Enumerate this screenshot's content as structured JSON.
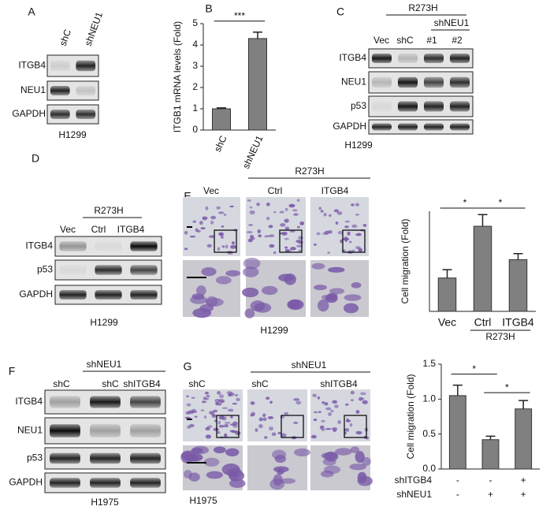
{
  "panels": {
    "A": {
      "label": "A",
      "columns": [
        "shC",
        "shNEU1"
      ],
      "rows": [
        "ITGB4",
        "NEU1",
        "GAPDH"
      ],
      "cell_line": "H1299"
    },
    "C": {
      "label": "C",
      "group": "R273H",
      "subgroup": "shNEU1",
      "columns": [
        "Vec",
        "shC",
        "#1",
        "#2"
      ],
      "rows": [
        "ITGB4",
        "NEU1",
        "p53",
        "GAPDH"
      ],
      "cell_line": "H1299"
    },
    "D": {
      "label": "D",
      "group": "R273H",
      "columns": [
        "Vec",
        "Ctrl",
        "ITGB4"
      ],
      "rows": [
        "ITGB4",
        "p53",
        "GAPDH"
      ],
      "cell_line": "H1299"
    },
    "E": {
      "label": "E",
      "group": "R273H",
      "columns": [
        "Vec",
        "Ctrl",
        "ITGB4"
      ],
      "cell_line": "H1299"
    },
    "F": {
      "label": "F",
      "group": "shNEU1",
      "columns": [
        "shC",
        "shC",
        "shITGB4"
      ],
      "rows": [
        "ITGB4",
        "NEU1",
        "p53",
        "GAPDH"
      ],
      "cell_line": "H1975"
    },
    "G": {
      "label": "G",
      "group": "shNEU1",
      "columns": [
        "shC",
        "shC",
        "shITGB4"
      ],
      "cell_line": "H1975"
    }
  },
  "chart_data": [
    {
      "type": "bar",
      "label": "B",
      "ylabel": "ITGB1 mRNA levels (Fold)",
      "categories": [
        "shC",
        "shNEU1"
      ],
      "values": [
        1.0,
        4.3
      ],
      "errors": [
        0.04,
        0.3
      ],
      "color": "#808080",
      "ylim": [
        0,
        5
      ],
      "yticks": [
        0,
        1,
        2,
        3,
        4,
        5
      ],
      "significance": [
        "***"
      ]
    },
    {
      "type": "bar",
      "ylabel": "Cell migration (Fold)",
      "categories": [
        "Vec",
        "Ctrl",
        "ITGB4"
      ],
      "group": "R273H",
      "values": [
        1.0,
        2.55,
        1.55
      ],
      "errors": [
        0.25,
        0.35,
        0.18
      ],
      "color": "#808080",
      "ylim": [
        0,
        3
      ],
      "significance": [
        "*",
        "*"
      ]
    },
    {
      "type": "bar",
      "ylabel": "Cell migration (Fold)",
      "categories": [
        null,
        null,
        null
      ],
      "values": [
        1.05,
        0.42,
        0.86
      ],
      "errors": [
        0.15,
        0.05,
        0.12
      ],
      "color": "#808080",
      "ylim": [
        0,
        1.5
      ],
      "yticks": [
        {
          "value": 0,
          "label": "0.0"
        },
        {
          "value": 0.5,
          "label": "0.5"
        },
        {
          "value": 1,
          "label": "1.0"
        },
        {
          "value": 1.5,
          "label": "1.5"
        }
      ],
      "conditions": [
        {
          "name": "shITGB4",
          "signs": [
            "-",
            "-",
            "+"
          ]
        },
        {
          "name": "shNEU1",
          "signs": [
            "-",
            "+",
            "+"
          ]
        }
      ],
      "significance": [
        "*",
        "*"
      ]
    }
  ]
}
